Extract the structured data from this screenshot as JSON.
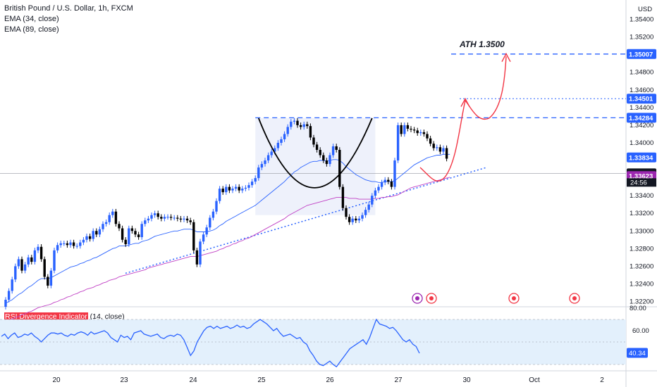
{
  "header": {
    "symbol": "British Pound / U.S. Dollar, 1h, FXCM",
    "ema1": "EMA (34, close)",
    "ema2": "EMA (89, close)",
    "currency": "USD"
  },
  "annotations": {
    "ath_text": "ATH 1.3500"
  },
  "chart_data": {
    "type": "candlestick",
    "title": "British Pound / U.S. Dollar, 1h, FXCM",
    "y_ticks": [
      "1.35400",
      "1.35200",
      "1.34800",
      "1.34600",
      "1.34400",
      "1.34200",
      "1.34000",
      "1.33600",
      "1.33400",
      "1.33200",
      "1.33000",
      "1.32800",
      "1.32600",
      "1.32400",
      "1.32200"
    ],
    "ylim": [
      1.3214,
      1.3562
    ],
    "x_ticks": [
      "20",
      "23",
      "24",
      "25",
      "26",
      "27",
      "30",
      "Oct",
      "2"
    ],
    "price_labels": [
      {
        "text": "1.35007",
        "value": 1.35007,
        "color": "#2962ff"
      },
      {
        "text": "1.34501",
        "value": 1.34501,
        "color": "#2962ff"
      },
      {
        "text": "1.34284",
        "value": 1.34284,
        "color": "#2962ff"
      },
      {
        "text": "1.33834",
        "value": 1.33834,
        "color": "#2962ff"
      },
      {
        "text": "1.33654",
        "value": 1.33654,
        "color": "#131722"
      },
      {
        "text": "1.33623",
        "value": 1.33623,
        "color": "#9c27b0"
      }
    ],
    "countdown": "24:56",
    "horizontal_levels": [
      1.35007,
      1.34501,
      1.34284
    ],
    "closes": [
      1.3222,
      1.3232,
      1.3245,
      1.326,
      1.3268,
      1.3255,
      1.3262,
      1.327,
      1.3265,
      1.3278,
      1.3282,
      1.3268,
      1.3248,
      1.3238,
      1.3255,
      1.3278,
      1.3284,
      1.3286,
      1.3286,
      1.3284,
      1.3287,
      1.3283,
      1.3283,
      1.3287,
      1.329,
      1.3294,
      1.3291,
      1.33,
      1.3296,
      1.3302,
      1.3308,
      1.331,
      1.3318,
      1.3322,
      1.3308,
      1.3303,
      1.329,
      1.3285,
      1.3303,
      1.33,
      1.3296,
      1.3293,
      1.3308,
      1.3312,
      1.3314,
      1.3318,
      1.332,
      1.3316,
      1.3314,
      1.3316,
      1.3316,
      1.3315,
      1.3315,
      1.3314,
      1.3313,
      1.3314,
      1.3312,
      1.331,
      1.3278,
      1.3262,
      1.3288,
      1.3296,
      1.3304,
      1.3315,
      1.3322,
      1.3334,
      1.3348,
      1.3344,
      1.335,
      1.3346,
      1.3348,
      1.335,
      1.3346,
      1.3348,
      1.3349,
      1.3352,
      1.3356,
      1.336,
      1.3372,
      1.3376,
      1.338,
      1.3386,
      1.339,
      1.3394,
      1.34,
      1.3404,
      1.341,
      1.3418,
      1.3424,
      1.3425,
      1.342,
      1.3418,
      1.3421,
      1.3419,
      1.3406,
      1.3398,
      1.3392,
      1.3386,
      1.338,
      1.3376,
      1.3386,
      1.3396,
      1.3392,
      1.335,
      1.3326,
      1.3316,
      1.331,
      1.3314,
      1.3312,
      1.3314,
      1.3318,
      1.3324,
      1.333,
      1.334,
      1.3346,
      1.335,
      1.3355,
      1.3358,
      1.3356,
      1.335,
      1.338,
      1.342,
      1.341,
      1.342,
      1.3416,
      1.3415,
      1.3414,
      1.3411,
      1.3412,
      1.341,
      1.3405,
      1.3399,
      1.3394,
      1.3395,
      1.339,
      1.3394,
      1.3382
    ],
    "ema34": [
      1.3218,
      1.322,
      1.3222,
      1.3225,
      1.3228,
      1.323,
      1.3233,
      1.3236,
      1.3238,
      1.3241,
      1.3244,
      1.3246,
      1.3246,
      1.3246,
      1.3247,
      1.3249,
      1.3251,
      1.3253,
      1.3255,
      1.3257,
      1.3259,
      1.326,
      1.3261,
      1.3263,
      1.3264,
      1.3266,
      1.3267,
      1.3269,
      1.327,
      1.3272,
      1.3274,
      1.3276,
      1.3278,
      1.328,
      1.3281,
      1.3283,
      1.3283,
      1.3283,
      1.3284,
      1.3285,
      1.3286,
      1.3286,
      1.3288,
      1.3289,
      1.329,
      1.3292,
      1.3294,
      1.3295,
      1.3296,
      1.3297,
      1.3298,
      1.3299,
      1.33,
      1.33,
      1.3301,
      1.3302,
      1.3302,
      1.3302,
      1.3301,
      1.3299,
      1.3299,
      1.3299,
      1.3299,
      1.33,
      1.3301,
      1.3303,
      1.3306,
      1.3308,
      1.3311,
      1.3313,
      1.3315,
      1.3317,
      1.3319,
      1.3321,
      1.3323,
      1.3325,
      1.3327,
      1.3329,
      1.3332,
      1.3335,
      1.3338,
      1.3341,
      1.3344,
      1.3347,
      1.335,
      1.3353,
      1.3356,
      1.336,
      1.3363,
      1.3367,
      1.3369,
      1.3372,
      1.3374,
      1.3376,
      1.3378,
      1.3379,
      1.3379,
      1.338,
      1.338,
      1.3379,
      1.338,
      1.3381,
      1.3381,
      1.338,
      1.3377,
      1.3373,
      1.337,
      1.3367,
      1.3364,
      1.3362,
      1.336,
      1.3358,
      1.3357,
      1.3356,
      1.3356,
      1.3355,
      1.3355,
      1.3356,
      1.3356,
      1.3356,
      1.3357,
      1.336,
      1.3363,
      1.3366,
      1.3369,
      1.3372,
      1.3375,
      1.3377,
      1.3379,
      1.3381,
      1.3383,
      1.3384,
      1.3385,
      1.3386,
      1.3386,
      1.3387,
      1.3387,
      1.3387
    ],
    "ema89": [
      1.3198,
      1.3199,
      1.32,
      1.3202,
      1.3203,
      1.3205,
      1.3206,
      1.3208,
      1.3209,
      1.3211,
      1.3213,
      1.3214,
      1.3215,
      1.3216,
      1.3217,
      1.3219,
      1.322,
      1.3222,
      1.3223,
      1.3225,
      1.3226,
      1.3228,
      1.3229,
      1.3231,
      1.3232,
      1.3234,
      1.3235,
      1.3236,
      1.3238,
      1.3239,
      1.3241,
      1.3242,
      1.3244,
      1.3245,
      1.3246,
      1.3248,
      1.3249,
      1.325,
      1.3251,
      1.3252,
      1.3253,
      1.3254,
      1.3255,
      1.3256,
      1.3258,
      1.3259,
      1.326,
      1.3261,
      1.3262,
      1.3263,
      1.3264,
      1.3265,
      1.3266,
      1.3267,
      1.3268,
      1.3269,
      1.327,
      1.3271,
      1.3271,
      1.3271,
      1.3272,
      1.3273,
      1.3274,
      1.3275,
      1.3276,
      1.3277,
      1.3279,
      1.328,
      1.3282,
      1.3283,
      1.3285,
      1.3286,
      1.3288,
      1.3289,
      1.3291,
      1.3292,
      1.3294,
      1.3296,
      1.3298,
      1.33,
      1.3302,
      1.3304,
      1.3306,
      1.3308,
      1.331,
      1.3312,
      1.3314,
      1.3317,
      1.3319,
      1.3321,
      1.3323,
      1.3325,
      1.3327,
      1.3329,
      1.333,
      1.3331,
      1.3332,
      1.3333,
      1.3334,
      1.3335,
      1.3336,
      1.3337,
      1.3338,
      1.3338,
      1.3338,
      1.3338,
      1.3337,
      1.3337,
      1.3337,
      1.3336,
      1.3336,
      1.3336,
      1.3336,
      1.3336,
      1.3337,
      1.3337,
      1.3338,
      1.3338,
      1.3339,
      1.3339,
      1.334,
      1.3341,
      1.3343,
      1.3345,
      1.3347,
      1.3349,
      1.335,
      1.3351,
      1.3352,
      1.3353,
      1.3354,
      1.3355,
      1.3356,
      1.3357,
      1.3358,
      1.3359,
      1.336,
      1.3361
    ],
    "rsi": {
      "title": "RSI Divergence Indicator",
      "params": "(14, close)",
      "current_label": "40.34",
      "y_ticks": [
        "60.00"
      ],
      "top_tick": "80.00",
      "band": [
        30,
        70
      ],
      "ylim": [
        25,
        80
      ],
      "values": [
        55,
        57,
        53,
        56,
        58,
        54,
        55,
        57,
        56,
        58,
        55,
        53,
        50,
        53,
        56,
        58,
        58,
        57,
        58,
        56,
        55,
        57,
        56,
        58,
        59,
        58,
        56,
        59,
        57,
        58,
        59,
        60,
        58,
        54,
        52,
        50,
        56,
        54,
        55,
        52,
        58,
        59,
        60,
        57,
        56,
        55,
        56,
        57,
        54,
        53,
        55,
        56,
        55,
        57,
        56,
        52,
        45,
        38,
        42,
        50,
        55,
        60,
        63,
        64,
        62,
        64,
        62,
        63,
        64,
        62,
        63,
        65,
        63,
        64,
        62,
        63,
        66,
        68,
        70,
        68,
        66,
        63,
        60,
        62,
        58,
        55,
        56,
        57,
        55,
        53,
        54,
        50,
        48,
        42,
        38,
        33,
        30,
        29,
        31,
        33,
        30,
        28,
        32,
        36,
        40,
        44,
        46,
        48,
        50,
        52,
        48,
        54,
        62,
        70,
        66,
        65,
        64,
        62,
        63,
        60,
        56,
        52,
        50,
        52,
        48,
        46,
        40
      ]
    }
  }
}
